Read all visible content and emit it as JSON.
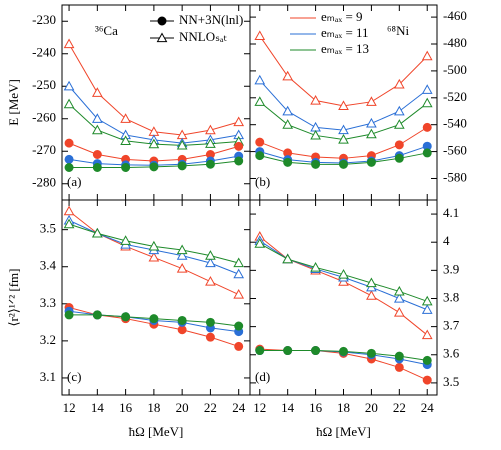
{
  "chart_data": [
    {
      "type": "line",
      "label": "(a)",
      "nucleus": "³⁶Ca",
      "ylabel": "E [MeV]",
      "yaxis_side": "left",
      "x": [
        12,
        14,
        16,
        18,
        20,
        22,
        24
      ],
      "xlim": [
        11.5,
        24.8
      ],
      "xticks": [
        12,
        14,
        16,
        18,
        20,
        22,
        24
      ],
      "ylim": [
        -285,
        -225
      ],
      "yticks": [
        -230,
        -240,
        -250,
        -260,
        -270,
        -280
      ],
      "marker_legend": [
        {
          "label": "NN+3N(lnl)",
          "marker": "circle"
        },
        {
          "label": "NNLOₛₐₜ",
          "marker": "triangle"
        }
      ],
      "series": [
        {
          "color": "#f0452a",
          "marker": "triangle",
          "values": [
            -237,
            -252,
            -260,
            -264,
            -265,
            -263.5,
            -261
          ]
        },
        {
          "color": "#2a6fd6",
          "marker": "triangle",
          "values": [
            -250,
            -260,
            -265,
            -266.5,
            -267.5,
            -266.5,
            -265
          ]
        },
        {
          "color": "#1e8a2a",
          "marker": "triangle",
          "values": [
            -255.5,
            -263.5,
            -266.8,
            -267.8,
            -268.2,
            -267.7,
            -267
          ]
        },
        {
          "color": "#f0452a",
          "marker": "circle",
          "values": [
            -267.5,
            -271,
            -272.5,
            -273,
            -272.5,
            -271,
            -268.5
          ]
        },
        {
          "color": "#2a6fd6",
          "marker": "circle",
          "values": [
            -272.5,
            -273.8,
            -274.2,
            -274.3,
            -274,
            -273,
            -271.5
          ]
        },
        {
          "color": "#1e8a2a",
          "marker": "circle",
          "values": [
            -275,
            -275,
            -275,
            -274.8,
            -274.5,
            -274,
            -273
          ]
        }
      ]
    },
    {
      "type": "line",
      "label": "(b)",
      "nucleus": "⁶⁸Ni",
      "yaxis_side": "right",
      "x": [
        12,
        14,
        16,
        18,
        20,
        22,
        24
      ],
      "xlim": [
        11.3,
        24.7
      ],
      "xticks": [
        12,
        14,
        16,
        18,
        20,
        22,
        24
      ],
      "ylim": [
        -596,
        -451
      ],
      "yticks": [
        -460,
        -480,
        -500,
        -520,
        -540,
        -560,
        -580
      ],
      "legend": [
        {
          "label": "eₘₐₓ = 9",
          "color": "#f0452a"
        },
        {
          "label": "eₘₐₓ = 11",
          "color": "#2a6fd6"
        },
        {
          "label": "eₘₐₓ = 13",
          "color": "#1e8a2a"
        }
      ],
      "series": [
        {
          "color": "#f0452a",
          "marker": "triangle",
          "values": [
            -474,
            -504,
            -522,
            -526,
            -523,
            -510,
            -489
          ]
        },
        {
          "color": "#2a6fd6",
          "marker": "triangle",
          "values": [
            -507,
            -530,
            -542,
            -544,
            -539,
            -530,
            -514
          ]
        },
        {
          "color": "#1e8a2a",
          "marker": "triangle",
          "values": [
            -523,
            -540,
            -548,
            -551,
            -547,
            -540,
            -524
          ]
        },
        {
          "color": "#f0452a",
          "marker": "circle",
          "values": [
            -553,
            -561,
            -564,
            -565,
            -563,
            -555,
            -542
          ]
        },
        {
          "color": "#2a6fd6",
          "marker": "circle",
          "values": [
            -560,
            -566,
            -568,
            -568.5,
            -567,
            -563,
            -556
          ]
        },
        {
          "color": "#1e8a2a",
          "marker": "circle",
          "values": [
            -563,
            -568,
            -569.5,
            -569.5,
            -568,
            -565,
            -561
          ]
        }
      ]
    },
    {
      "type": "line",
      "label": "(c)",
      "ylabel": "⟨r²⟩¹ᐟ² [fm]",
      "xlabel": "ħΩ [MeV]",
      "yaxis_side": "left",
      "x": [
        12,
        14,
        16,
        18,
        20,
        22,
        24
      ],
      "xlim": [
        11.5,
        24.8
      ],
      "xticks": [
        12,
        14,
        16,
        18,
        20,
        22,
        24
      ],
      "ylim": [
        3.054,
        3.58
      ],
      "yticks": [
        3.1,
        3.2,
        3.3,
        3.4,
        3.5
      ],
      "series": [
        {
          "color": "#f0452a",
          "marker": "triangle",
          "values": [
            3.55,
            3.49,
            3.455,
            3.425,
            3.395,
            3.36,
            3.325
          ]
        },
        {
          "color": "#2a6fd6",
          "marker": "triangle",
          "values": [
            3.525,
            3.49,
            3.46,
            3.445,
            3.43,
            3.41,
            3.38
          ]
        },
        {
          "color": "#1e8a2a",
          "marker": "triangle",
          "values": [
            3.515,
            3.49,
            3.47,
            3.455,
            3.445,
            3.43,
            3.41
          ]
        },
        {
          "color": "#f0452a",
          "marker": "circle",
          "values": [
            3.29,
            3.27,
            3.26,
            3.245,
            3.23,
            3.21,
            3.185
          ]
        },
        {
          "color": "#2a6fd6",
          "marker": "circle",
          "values": [
            3.28,
            3.27,
            3.265,
            3.255,
            3.25,
            3.235,
            3.225
          ]
        },
        {
          "color": "#1e8a2a",
          "marker": "circle",
          "values": [
            3.27,
            3.27,
            3.265,
            3.26,
            3.255,
            3.25,
            3.24
          ]
        }
      ]
    },
    {
      "type": "line",
      "label": "(d)",
      "xlabel": "ħΩ [MeV]",
      "yaxis_side": "right",
      "x": [
        12,
        14,
        16,
        18,
        20,
        22,
        24
      ],
      "xlim": [
        11.3,
        24.7
      ],
      "xticks": [
        12,
        14,
        16,
        18,
        20,
        22,
        24
      ],
      "ylim": [
        3.457,
        4.15
      ],
      "yticks": [
        3.5,
        3.6,
        3.7,
        3.8,
        3.9,
        4.0,
        4.1
      ],
      "series": [
        {
          "color": "#f0452a",
          "marker": "triangle",
          "values": [
            4.02,
            3.94,
            3.9,
            3.86,
            3.81,
            3.75,
            3.67
          ]
        },
        {
          "color": "#2a6fd6",
          "marker": "triangle",
          "values": [
            4.005,
            3.94,
            3.905,
            3.875,
            3.84,
            3.8,
            3.76
          ]
        },
        {
          "color": "#1e8a2a",
          "marker": "triangle",
          "values": [
            3.995,
            3.94,
            3.91,
            3.885,
            3.855,
            3.825,
            3.79
          ]
        },
        {
          "color": "#f0452a",
          "marker": "circle",
          "values": [
            3.62,
            3.615,
            3.615,
            3.605,
            3.585,
            3.555,
            3.51
          ]
        },
        {
          "color": "#2a6fd6",
          "marker": "circle",
          "values": [
            3.615,
            3.615,
            3.615,
            3.61,
            3.6,
            3.585,
            3.565
          ]
        },
        {
          "color": "#1e8a2a",
          "marker": "circle",
          "values": [
            3.615,
            3.615,
            3.615,
            3.612,
            3.605,
            3.595,
            3.58
          ]
        }
      ]
    }
  ]
}
